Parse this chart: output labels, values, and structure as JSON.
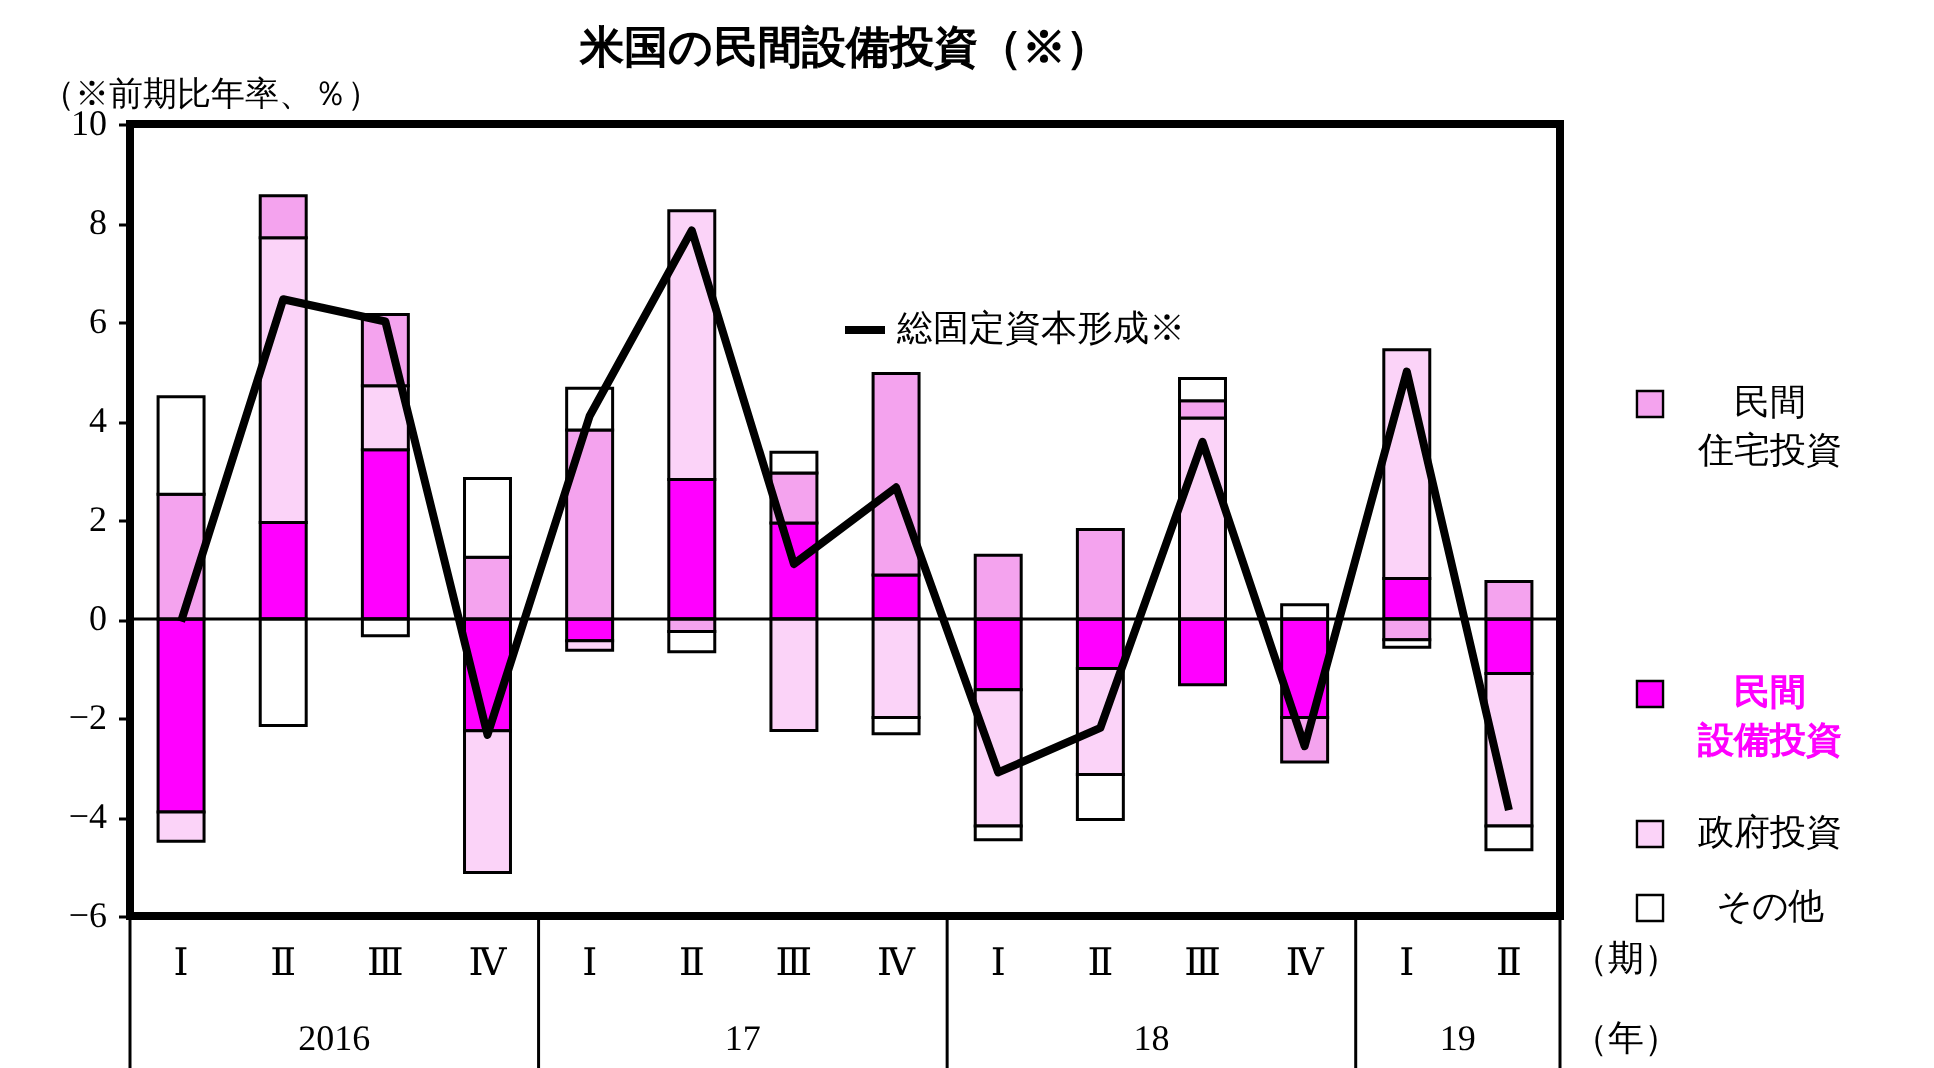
{
  "chart_data": {
    "type": "bar",
    "stacked": true,
    "title": "米国の民間設備投資（※）",
    "ylabel": "（※前期比年率、％）",
    "categories": [
      "Ⅰ",
      "Ⅱ",
      "Ⅲ",
      "Ⅳ",
      "Ⅰ",
      "Ⅱ",
      "Ⅲ",
      "Ⅳ",
      "Ⅰ",
      "Ⅱ",
      "Ⅲ",
      "Ⅳ",
      "Ⅰ",
      "Ⅱ"
    ],
    "series": [
      {
        "name": "民間設備投資",
        "color": "#ff00ff",
        "values": [
          -3.9,
          1.95,
          3.42,
          -2.26,
          -0.44,
          2.82,
          1.94,
          0.89,
          -1.43,
          -1.0,
          -1.33,
          -1.99,
          0.82,
          -1.1
        ]
      },
      {
        "name": "政府投資",
        "color": "#fbd3f8",
        "values": [
          -0.59,
          5.75,
          1.29,
          -2.86,
          -0.19,
          5.43,
          -2.25,
          -1.99,
          -2.75,
          -2.14,
          4.06,
          null,
          4.62,
          -3.08
        ]
      },
      {
        "name": "民間住宅投資",
        "color": "#f4a3ee",
        "values": [
          2.52,
          0.85,
          1.44,
          1.25,
          3.82,
          -0.25,
          1.01,
          4.07,
          1.29,
          1.81,
          0.35,
          -0.9,
          -0.42,
          0.76
        ]
      },
      {
        "name": "その他",
        "color": "#ffffff",
        "values": [
          1.97,
          -2.15,
          -0.34,
          1.59,
          0.84,
          -0.41,
          0.42,
          -0.33,
          -0.28,
          -0.91,
          0.45,
          0.29,
          -0.15,
          -0.48
        ]
      },
      {
        "name": "総固定資本形成※",
        "type": "line",
        "color": "#000000",
        "values": [
          -0.05,
          6.46,
          6.01,
          -2.34,
          4.1,
          7.85,
          1.11,
          2.66,
          -3.1,
          -2.2,
          3.58,
          -2.57,
          5.0,
          -3.86
        ]
      }
    ],
    "ylim": [
      -6,
      10
    ],
    "yticks": [
      -6,
      -4,
      -2,
      0,
      2,
      4,
      6,
      8,
      10
    ],
    "ref_lines": [
      {
        "axis": "y",
        "value": 0,
        "color": "#000000"
      }
    ],
    "annotations": [
      "（期）",
      "（年）",
      "2016",
      "17",
      "18",
      "19"
    ],
    "grid": false,
    "legend": "right",
    "marker": "none",
    "line_style": "solid"
  }
}
